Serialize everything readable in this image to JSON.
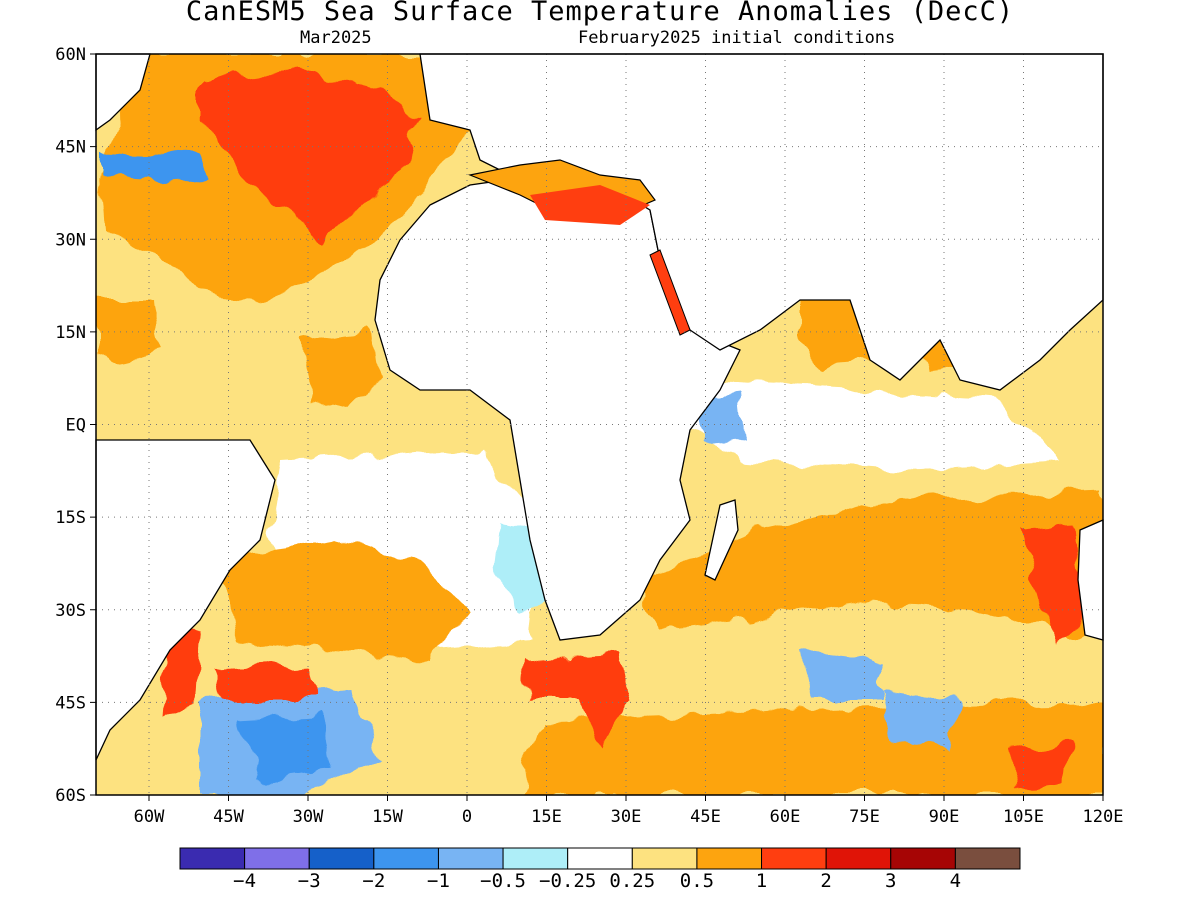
{
  "title": "CanESM5 Sea Surface Temperature Anomalies (DecC)",
  "subtitle_left": "Mar2025",
  "subtitle_right": "February2025 initial conditions",
  "axes": {
    "lat_labels": [
      "60N",
      "45N",
      "30N",
      "15N",
      "EQ",
      "15S",
      "30S",
      "45S",
      "60S"
    ],
    "lat_values": [
      60,
      45,
      30,
      15,
      0,
      -15,
      -30,
      -45,
      -60
    ],
    "lon_labels": [
      "60W",
      "45W",
      "30W",
      "15W",
      "0",
      "15E",
      "30E",
      "45E",
      "60E",
      "75E",
      "90E",
      "105E",
      "120E"
    ],
    "lon_values": [
      -60,
      -45,
      -30,
      -15,
      0,
      15,
      30,
      45,
      60,
      75,
      90,
      105,
      120
    ],
    "lon_range": [
      -70,
      120
    ],
    "lat_range": [
      -60,
      60
    ],
    "grid": "dotted"
  },
  "colorbar": {
    "colors": [
      "#3a2bb0",
      "#7f6fe8",
      "#1560c9",
      "#3d95ef",
      "#78b4f3",
      "#aeeef8",
      "#ffffff",
      "#fde280",
      "#fda40f",
      "#ff3e10",
      "#e01407",
      "#a60505",
      "#7a4e3e"
    ],
    "labels": [
      "−4",
      "−3",
      "−2",
      "−1",
      "−0.5",
      "−0.25",
      "0.25",
      "0.5",
      "1",
      "2",
      "3",
      "4"
    ]
  },
  "icons": {
    "map": "world-map-sst-anomaly"
  }
}
